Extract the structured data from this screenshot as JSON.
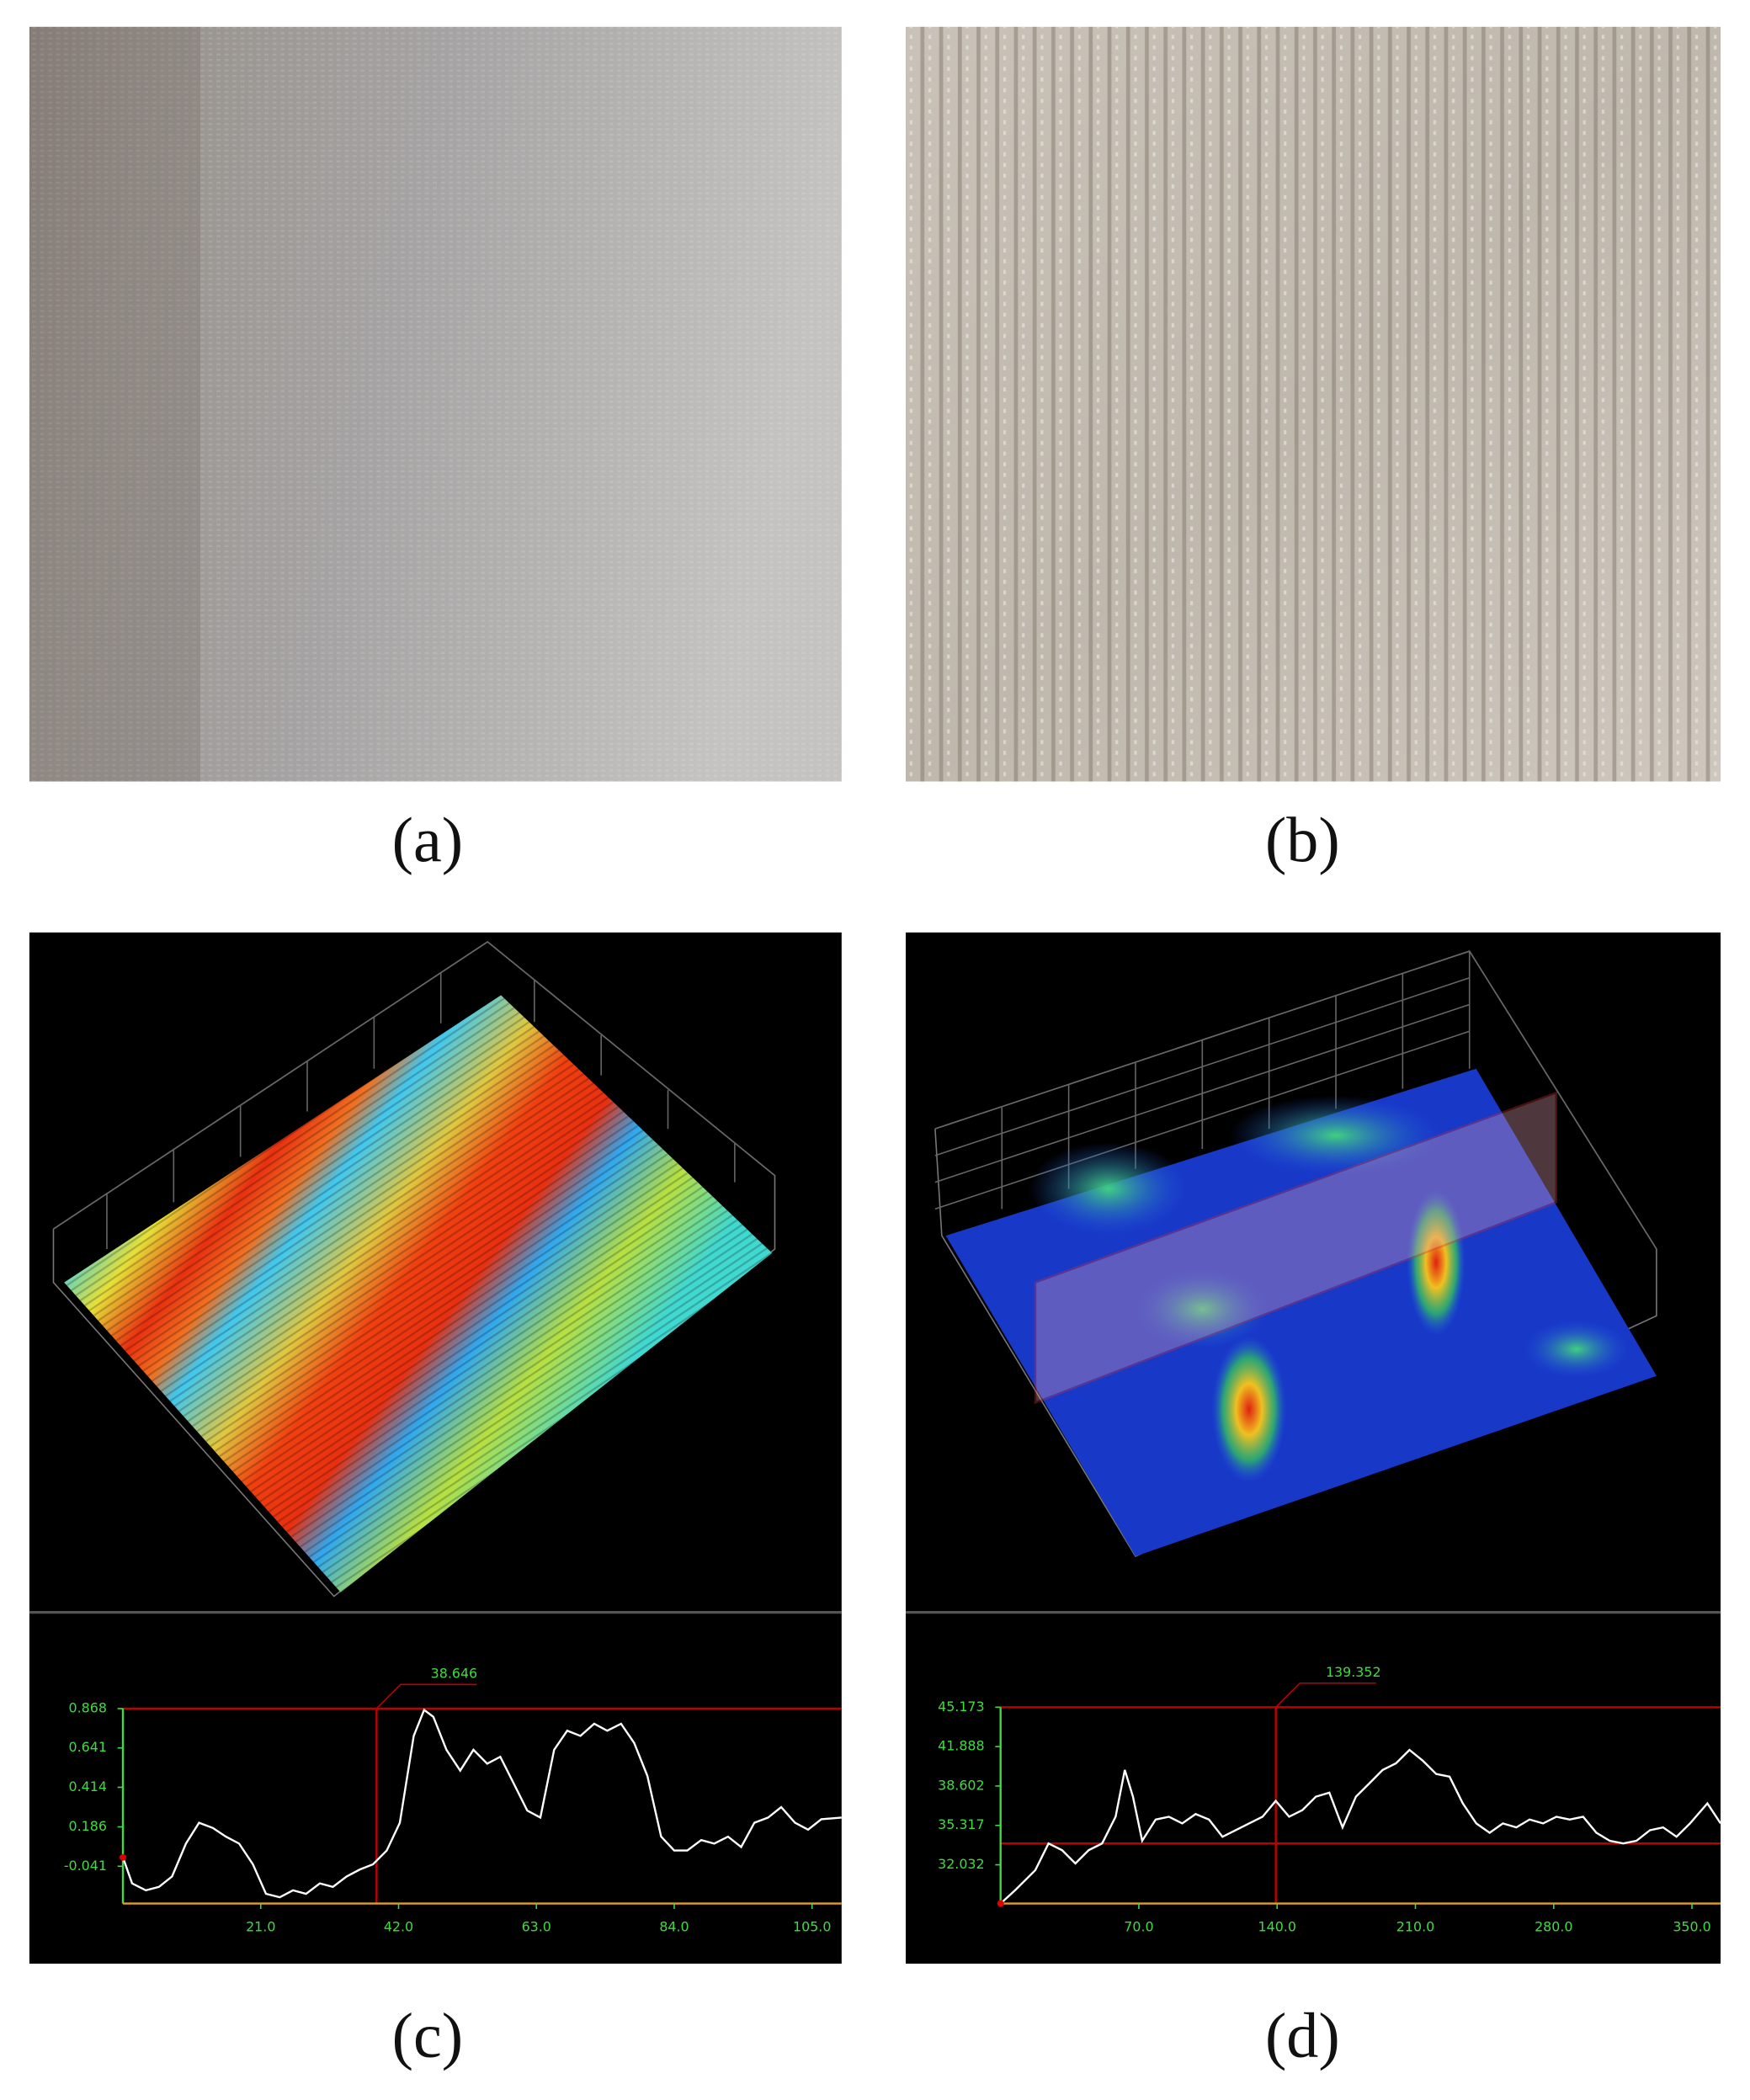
{
  "panels": [
    {
      "label": "(a)"
    },
    {
      "label": "(b)"
    },
    {
      "label": "(c)",
      "profile": {
        "type": "line",
        "color": "#ffffff",
        "x": [
          0,
          1.4,
          3.5,
          5.5,
          7.5,
          9.6,
          11.6,
          13.7,
          15.7,
          17.7,
          19.8,
          21.8,
          23.9,
          25.9,
          27.9,
          30.0,
          32.0,
          34.1,
          36.1,
          38.1,
          40.2,
          42.2,
          44.3,
          45.9,
          47.3,
          49.3,
          51.4,
          53.4,
          55.5,
          57.5,
          59.5,
          61.6,
          63.6,
          65.7,
          67.7,
          69.7,
          71.8,
          73.8,
          75.9,
          77.9,
          79.9,
          82.0,
          84.0,
          86.0,
          88.1,
          90.1,
          92.2,
          94.2,
          96.2,
          98.3,
          100.3,
          102.4,
          104.4,
          106.4,
          109.5
        ],
        "values": [
          0.01,
          -0.14,
          -0.18,
          -0.16,
          -0.1,
          0.09,
          0.21,
          0.18,
          0.13,
          0.09,
          -0.03,
          -0.2,
          -0.22,
          -0.18,
          -0.2,
          -0.14,
          -0.16,
          -0.1,
          -0.06,
          -0.03,
          0.05,
          0.21,
          0.71,
          0.86,
          0.82,
          0.63,
          0.51,
          0.63,
          0.55,
          0.59,
          0.44,
          0.28,
          0.24,
          0.63,
          0.74,
          0.71,
          0.78,
          0.74,
          0.78,
          0.67,
          0.48,
          0.13,
          0.05,
          0.05,
          0.11,
          0.09,
          0.13,
          0.07,
          0.21,
          0.24,
          0.3,
          0.21,
          0.17,
          0.23,
          0.24
        ],
        "xlim": [
          0,
          109.5
        ],
        "ylim": [
          -0.256,
          0.868
        ],
        "xticks": [
          {
            "value": 21,
            "label": "21.0"
          },
          {
            "value": 42,
            "label": "42.0"
          },
          {
            "value": 63,
            "label": "63.0"
          },
          {
            "value": 84,
            "label": "84.0"
          },
          {
            "value": 105,
            "label": "105.0"
          }
        ],
        "yticks": [
          0.868,
          0.641,
          0.414,
          0.186,
          -0.041
        ],
        "marker_x": 38.646,
        "levels": [
          0.868
        ]
      }
    },
    {
      "label": "(d)",
      "profile": {
        "type": "line",
        "color": "#ffffff",
        "x": [
          0,
          7.4,
          17.6,
          24.3,
          31.1,
          37.9,
          44.6,
          51.4,
          58.2,
          62.9,
          67.0,
          71.7,
          78.5,
          85.2,
          92.0,
          98.7,
          105.5,
          112.3,
          119.0,
          125.8,
          132.6,
          139.3,
          146.1,
          152.8,
          159.6,
          166.4,
          173.1,
          179.9,
          186.7,
          193.4,
          200.2,
          207.0,
          213.7,
          220.5,
          227.3,
          234.0,
          240.8,
          247.6,
          254.3,
          261.1,
          267.8,
          274.6,
          281.4,
          288.1,
          294.9,
          301.6,
          308.4,
          315.2,
          321.9,
          328.7,
          335.4,
          342.2,
          349.0,
          357.8,
          364.5
        ],
        "values": [
          28.8,
          29.91,
          31.58,
          33.81,
          33.25,
          32.14,
          33.25,
          33.81,
          36.04,
          39.94,
          37.71,
          34.03,
          35.81,
          36.04,
          35.48,
          36.26,
          35.81,
          34.37,
          34.92,
          35.48,
          36.04,
          37.37,
          36.04,
          36.6,
          37.71,
          38.04,
          35.15,
          37.71,
          38.82,
          39.94,
          40.49,
          41.61,
          40.72,
          39.6,
          39.38,
          37.15,
          35.48,
          34.7,
          35.48,
          35.15,
          35.81,
          35.48,
          36.04,
          35.81,
          36.04,
          34.7,
          34.03,
          33.81,
          34.03,
          34.92,
          35.15,
          34.37,
          35.48,
          37.15,
          35.48
        ],
        "xlim": [
          0,
          364.5
        ],
        "ylim": [
          28.8,
          45.173
        ],
        "xticks": [
          {
            "value": 70,
            "label": "70.0"
          },
          {
            "value": 140,
            "label": "140.0"
          },
          {
            "value": 210,
            "label": "210.0"
          },
          {
            "value": 280,
            "label": "280.0"
          },
          {
            "value": 350,
            "label": "350.0"
          }
        ],
        "yticks": [
          45.173,
          41.888,
          38.602,
          35.317,
          32.032
        ],
        "marker_x": 139.352,
        "levels": [
          45.173,
          33.81
        ]
      }
    }
  ]
}
